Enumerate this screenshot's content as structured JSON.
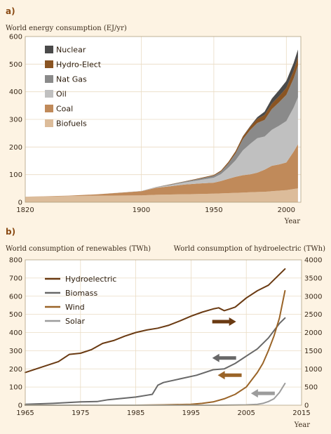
{
  "figure": {
    "panel_a_label": "a)",
    "panel_b_label": "b)"
  },
  "colors": {
    "background": "#fdf3e3",
    "plot_bg": "#ffffff",
    "grid": "#eadcc4",
    "frame": "#b0a080",
    "Nuclear": "#4a4a4a",
    "Hydro-Elect": "#8a5422",
    "Nat Gas": "#8a8a8a",
    "Oil": "#c0c0c0",
    "Coal": "#c08a5a",
    "Biofuels": "#dcbc9a",
    "Hydroelectric": "#6a3a12",
    "Biomass": "#686868",
    "Wind": "#9a6428",
    "Solar": "#9c9c9c"
  },
  "chart_data": [
    {
      "type": "area",
      "title": "World energy consumption (EJ/yr)",
      "xlabel": "Year",
      "ylabel": "",
      "xlim": [
        1820,
        2010
      ],
      "ylim": [
        0,
        600
      ],
      "xticks": [
        1820,
        1900,
        1950,
        2000
      ],
      "yticks": [
        0,
        100,
        200,
        300,
        400,
        500,
        600
      ],
      "stacked": true,
      "legend_position": "top-left",
      "legend_order": [
        "Nuclear",
        "Hydro-Elect",
        "Nat Gas",
        "Oil",
        "Coal",
        "Biofuels"
      ],
      "x": [
        1820,
        1850,
        1870,
        1900,
        1910,
        1920,
        1930,
        1940,
        1950,
        1955,
        1960,
        1965,
        1970,
        1975,
        1980,
        1985,
        1990,
        1995,
        2000,
        2005,
        2008
      ],
      "series": [
        {
          "name": "Biofuels",
          "values": [
            20,
            22,
            24,
            25,
            27,
            28,
            29,
            30,
            31,
            32,
            33,
            34,
            35,
            36,
            37,
            38,
            40,
            42,
            44,
            48,
            50
          ]
        },
        {
          "name": "Coal",
          "values": [
            0,
            2,
            5,
            15,
            25,
            30,
            35,
            38,
            40,
            45,
            52,
            58,
            63,
            65,
            70,
            80,
            92,
            95,
            100,
            135,
            160
          ]
        },
        {
          "name": "Oil",
          "values": [
            0,
            0,
            0,
            1,
            2,
            4,
            8,
            12,
            18,
            25,
            40,
            60,
            90,
            110,
            125,
            120,
            130,
            140,
            150,
            160,
            170
          ]
        },
        {
          "name": "Nat Gas",
          "values": [
            0,
            0,
            0,
            0,
            1,
            2,
            3,
            5,
            7,
            9,
            15,
            25,
            40,
            50,
            55,
            60,
            75,
            85,
            95,
            105,
            115
          ]
        },
        {
          "name": "Hydro-Elect",
          "values": [
            0,
            0,
            0,
            0,
            0,
            1,
            1,
            2,
            3,
            4,
            6,
            8,
            10,
            12,
            15,
            18,
            20,
            22,
            25,
            28,
            30
          ]
        },
        {
          "name": "Nuclear",
          "values": [
            0,
            0,
            0,
            0,
            0,
            0,
            0,
            0,
            0,
            0,
            0,
            0,
            1,
            2,
            6,
            12,
            18,
            22,
            25,
            28,
            28
          ]
        }
      ]
    },
    {
      "type": "line",
      "xlabel": "Year",
      "ylabel": "World consumption of renewables (TWh)",
      "ylabel_right": "World consumption of hydroelectric (TWh)",
      "xlim": [
        1965,
        2015
      ],
      "ylim": [
        0,
        800
      ],
      "ylim_right": [
        0,
        4000
      ],
      "xticks": [
        1965,
        1975,
        1985,
        1995,
        2005,
        2015
      ],
      "yticks": [
        0,
        100,
        200,
        300,
        400,
        500,
        600,
        700,
        800
      ],
      "yticks_right": [
        0,
        500,
        1000,
        1500,
        2000,
        2500,
        3000,
        3500,
        4000
      ],
      "legend_position": "top-left",
      "series": [
        {
          "name": "Hydroelectric",
          "axis": "right",
          "x": [
            1965,
            1968,
            1971,
            1973,
            1975,
            1977,
            1979,
            1981,
            1983,
            1985,
            1987,
            1989,
            1991,
            1993,
            1995,
            1997,
            1999,
            2000,
            2001,
            2002,
            2003,
            2005,
            2007,
            2009,
            2011,
            2012
          ],
          "values": [
            900,
            1050,
            1200,
            1400,
            1430,
            1530,
            1700,
            1780,
            1900,
            2000,
            2070,
            2120,
            2200,
            2320,
            2450,
            2560,
            2650,
            2680,
            2600,
            2650,
            2700,
            2950,
            3150,
            3300,
            3600,
            3750
          ]
        },
        {
          "name": "Biomass",
          "axis": "left",
          "x": [
            1965,
            1970,
            1975,
            1978,
            1980,
            1985,
            1987,
            1988,
            1989,
            1990,
            1993,
            1996,
            1999,
            2001,
            2003,
            2005,
            2007,
            2009,
            2011,
            2012
          ],
          "values": [
            5,
            10,
            18,
            20,
            30,
            45,
            55,
            60,
            110,
            125,
            145,
            165,
            195,
            200,
            230,
            270,
            310,
            370,
            450,
            480
          ]
        },
        {
          "name": "Wind",
          "axis": "left",
          "x": [
            1965,
            1985,
            1990,
            1995,
            1997,
            1999,
            2001,
            2003,
            2005,
            2007,
            2008,
            2009,
            2010,
            2011,
            2012
          ],
          "values": [
            0,
            0,
            2,
            5,
            10,
            18,
            35,
            60,
            100,
            180,
            230,
            300,
            380,
            480,
            630
          ]
        },
        {
          "name": "Solar",
          "axis": "left",
          "x": [
            1965,
            2000,
            2005,
            2007,
            2008,
            2009,
            2010,
            2011,
            2012
          ],
          "values": [
            0,
            0,
            2,
            5,
            10,
            20,
            35,
            70,
            120
          ]
        }
      ],
      "arrows": [
        {
          "series": "Hydroelectric",
          "direction": "right",
          "points_to_axis": "right",
          "x": 2001,
          "y": 460
        },
        {
          "series": "Biomass",
          "direction": "left",
          "points_to_axis": "left",
          "x": 2001,
          "y": 260
        },
        {
          "series": "Wind",
          "direction": "left",
          "points_to_axis": "left",
          "x": 2002,
          "y": 165
        },
        {
          "series": "Solar",
          "direction": "left",
          "points_to_axis": "left",
          "x": 2008,
          "y": 65
        }
      ]
    }
  ]
}
